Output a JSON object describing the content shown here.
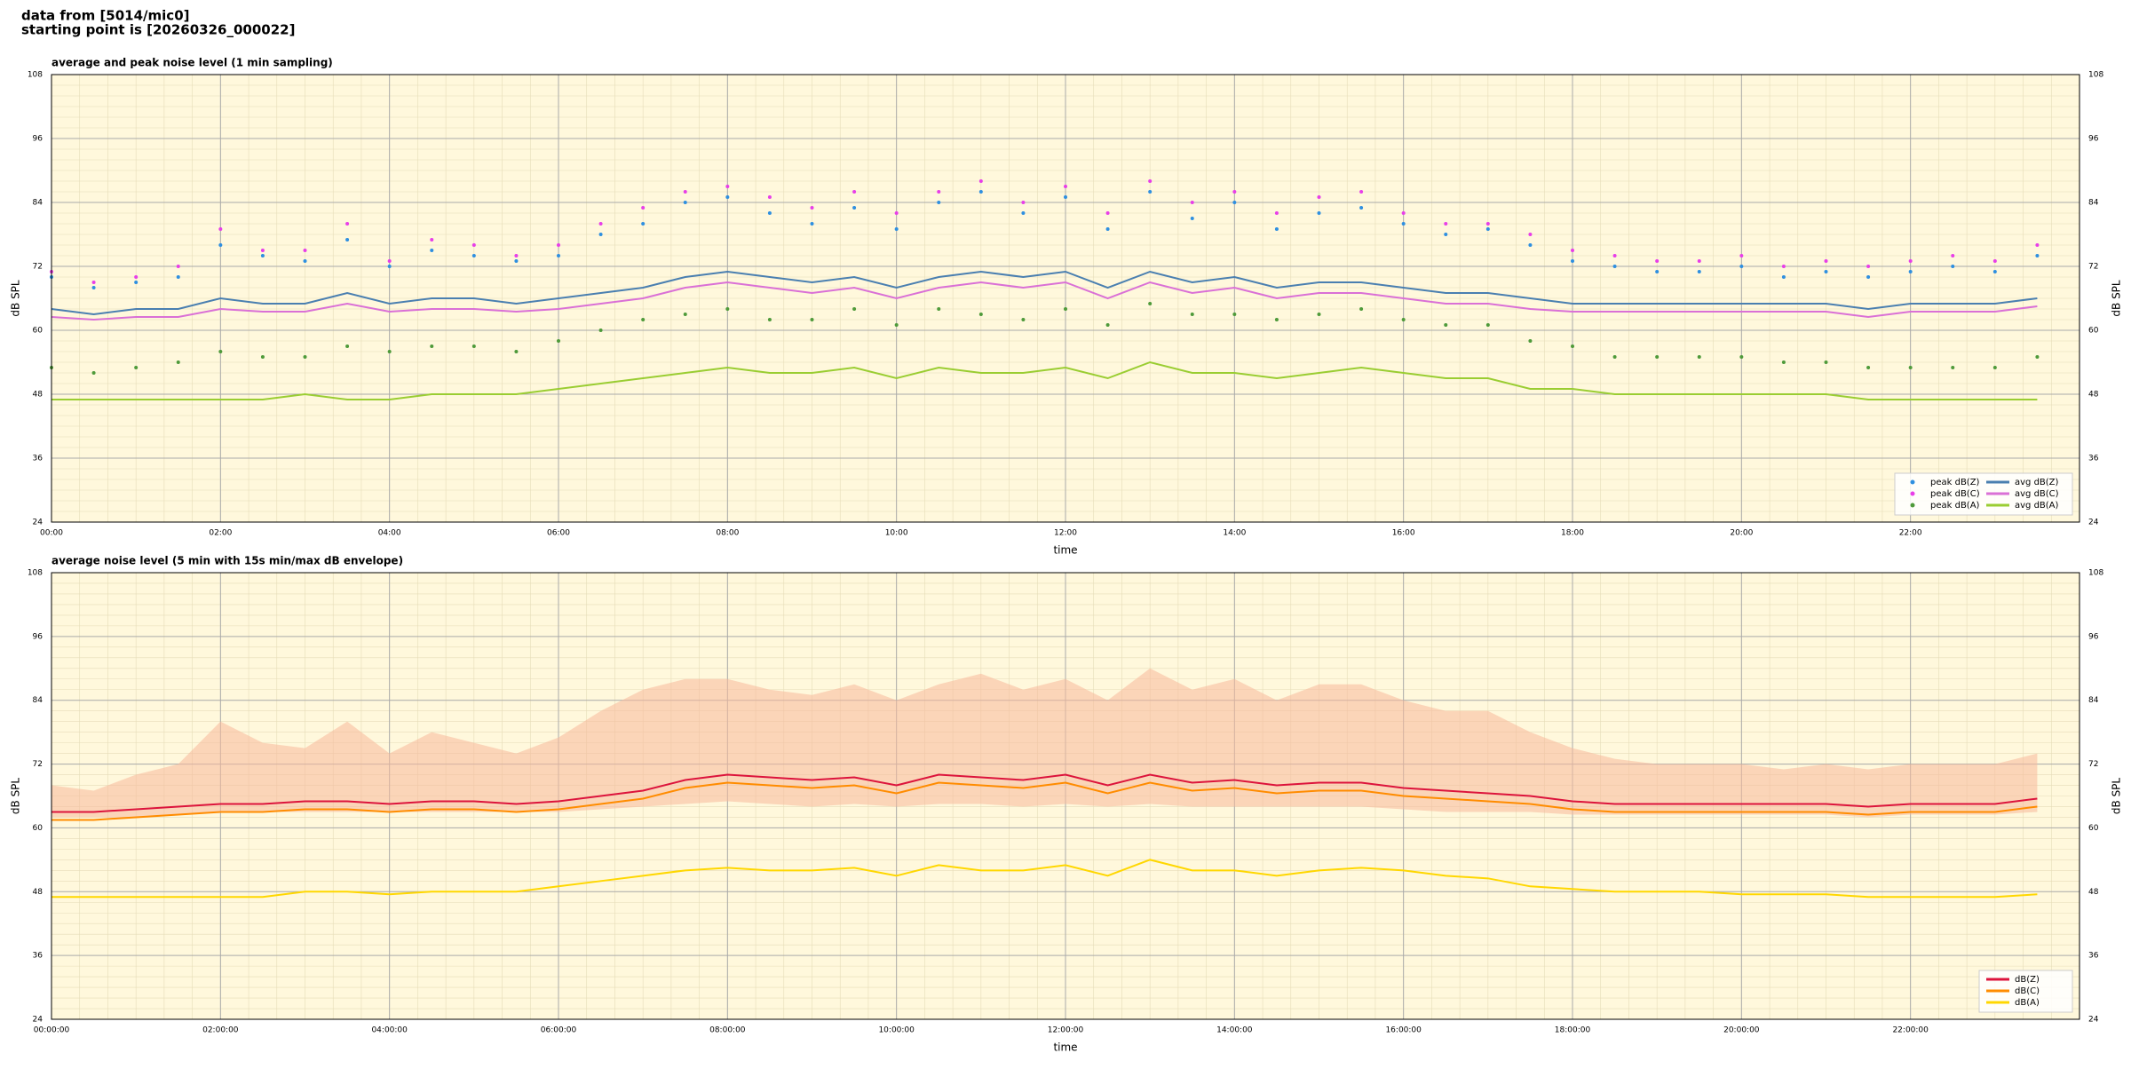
{
  "header": {
    "line1": "data from [5014/mic0]",
    "line2": "starting point is [20260326_000022]"
  },
  "chart_data": [
    {
      "type": "line",
      "title": "average and peak noise level (1 min sampling)",
      "xlabel": "time",
      "ylabel": "dB SPL",
      "x": [
        "00:00",
        "00:30",
        "01:00",
        "01:30",
        "02:00",
        "02:30",
        "03:00",
        "03:30",
        "04:00",
        "04:30",
        "05:00",
        "05:30",
        "06:00",
        "06:30",
        "07:00",
        "07:30",
        "08:00",
        "08:30",
        "09:00",
        "09:30",
        "10:00",
        "10:30",
        "11:00",
        "11:30",
        "12:00",
        "12:30",
        "13:00",
        "13:30",
        "14:00",
        "14:30",
        "15:00",
        "15:30",
        "16:00",
        "16:30",
        "17:00",
        "17:30",
        "18:00",
        "18:30",
        "19:00",
        "19:30",
        "20:00",
        "20:30",
        "21:00",
        "21:30",
        "22:00",
        "22:30",
        "23:00",
        "23:30"
      ],
      "xlim": [
        "00:00",
        "24:00"
      ],
      "xticks": [
        "00:00",
        "02:00",
        "04:00",
        "06:00",
        "08:00",
        "10:00",
        "12:00",
        "14:00",
        "16:00",
        "18:00",
        "20:00",
        "22:00"
      ],
      "ylim": [
        24,
        108
      ],
      "yticks": [
        24,
        36,
        48,
        60,
        72,
        84,
        96,
        108
      ],
      "grid": true,
      "legend": "lower right",
      "series": [
        {
          "name": "peak dB(Z)",
          "color": "#2e8fe0",
          "kind": "scatter",
          "values": [
            70,
            68,
            69,
            70,
            76,
            74,
            73,
            77,
            72,
            75,
            74,
            73,
            74,
            78,
            80,
            84,
            85,
            82,
            80,
            83,
            79,
            84,
            86,
            82,
            85,
            79,
            86,
            81,
            84,
            79,
            82,
            83,
            80,
            78,
            79,
            76,
            73,
            72,
            71,
            71,
            72,
            70,
            71,
            70,
            71,
            72,
            71,
            74
          ]
        },
        {
          "name": "peak dB(C)",
          "color": "#e83ee8",
          "kind": "scatter",
          "values": [
            71,
            69,
            70,
            72,
            79,
            75,
            75,
            80,
            73,
            77,
            76,
            74,
            76,
            80,
            83,
            86,
            87,
            85,
            83,
            86,
            82,
            86,
            88,
            84,
            87,
            82,
            88,
            84,
            86,
            82,
            85,
            86,
            82,
            80,
            80,
            78,
            75,
            74,
            73,
            73,
            74,
            72,
            73,
            72,
            73,
            74,
            73,
            76
          ]
        },
        {
          "name": "peak dB(A)",
          "color": "#4e9a3a",
          "kind": "scatter",
          "values": [
            53,
            52,
            53,
            54,
            56,
            55,
            55,
            57,
            56,
            57,
            57,
            56,
            58,
            60,
            62,
            63,
            64,
            62,
            62,
            64,
            61,
            64,
            63,
            62,
            64,
            61,
            65,
            63,
            63,
            62,
            63,
            64,
            62,
            61,
            61,
            58,
            57,
            55,
            55,
            55,
            55,
            54,
            54,
            53,
            53,
            53,
            53,
            55
          ]
        },
        {
          "name": "avg dB(Z)",
          "color": "#4a7fb0",
          "kind": "line",
          "values": [
            64,
            63,
            64,
            64,
            66,
            65,
            65,
            67,
            65,
            66,
            66,
            65,
            66,
            67,
            68,
            70,
            71,
            70,
            69,
            70,
            68,
            70,
            71,
            70,
            71,
            68,
            71,
            69,
            70,
            68,
            69,
            69,
            68,
            67,
            67,
            66,
            65,
            65,
            65,
            65,
            65,
            65,
            65,
            64,
            65,
            65,
            65,
            66
          ]
        },
        {
          "name": "avg dB(C)",
          "color": "#da70d6",
          "kind": "line",
          "values": [
            62.5,
            62,
            62.5,
            62.5,
            64,
            63.5,
            63.5,
            65,
            63.5,
            64,
            64,
            63.5,
            64,
            65,
            66,
            68,
            69,
            68,
            67,
            68,
            66,
            68,
            69,
            68,
            69,
            66,
            69,
            67,
            68,
            66,
            67,
            67,
            66,
            65,
            65,
            64,
            63.5,
            63.5,
            63.5,
            63.5,
            63.5,
            63.5,
            63.5,
            62.5,
            63.5,
            63.5,
            63.5,
            64.5
          ]
        },
        {
          "name": "avg dB(A)",
          "color": "#9acd32",
          "kind": "line",
          "values": [
            47,
            47,
            47,
            47,
            47,
            47,
            48,
            47,
            47,
            48,
            48,
            48,
            49,
            50,
            51,
            52,
            53,
            52,
            52,
            53,
            51,
            53,
            52,
            52,
            53,
            51,
            54,
            52,
            52,
            51,
            52,
            53,
            52,
            51,
            51,
            49,
            49,
            48,
            48,
            48,
            48,
            48,
            48,
            47,
            47,
            47,
            47,
            47
          ]
        }
      ]
    },
    {
      "type": "line",
      "title": "average noise level (5 min with 15s min/max dB envelope)",
      "xlabel": "time",
      "ylabel": "dB SPL",
      "x": [
        "00:00:00",
        "00:30:00",
        "01:00:00",
        "01:30:00",
        "02:00:00",
        "02:30:00",
        "03:00:00",
        "03:30:00",
        "04:00:00",
        "04:30:00",
        "05:00:00",
        "05:30:00",
        "06:00:00",
        "06:30:00",
        "07:00:00",
        "07:30:00",
        "08:00:00",
        "08:30:00",
        "09:00:00",
        "09:30:00",
        "10:00:00",
        "10:30:00",
        "11:00:00",
        "11:30:00",
        "12:00:00",
        "12:30:00",
        "13:00:00",
        "13:30:00",
        "14:00:00",
        "14:30:00",
        "15:00:00",
        "15:30:00",
        "16:00:00",
        "16:30:00",
        "17:00:00",
        "17:30:00",
        "18:00:00",
        "18:30:00",
        "19:00:00",
        "19:30:00",
        "20:00:00",
        "20:30:00",
        "21:00:00",
        "21:30:00",
        "22:00:00",
        "22:30:00",
        "23:00:00",
        "23:30:00"
      ],
      "xlim": [
        "00:00:00",
        "24:00:00"
      ],
      "xticks": [
        "00:00:00",
        "02:00:00",
        "04:00:00",
        "06:00:00",
        "08:00:00",
        "10:00:00",
        "12:00:00",
        "14:00:00",
        "16:00:00",
        "18:00:00",
        "20:00:00",
        "22:00:00"
      ],
      "ylim": [
        24,
        108
      ],
      "yticks": [
        24,
        36,
        48,
        60,
        72,
        84,
        96,
        108
      ],
      "grid": true,
      "legend": "lower right",
      "envelope_color": "#f8b89a",
      "envelope_max": [
        68,
        67,
        70,
        72,
        80,
        76,
        75,
        80,
        74,
        78,
        76,
        74,
        77,
        82,
        86,
        88,
        88,
        86,
        85,
        87,
        84,
        87,
        89,
        86,
        88,
        84,
        90,
        86,
        88,
        84,
        87,
        87,
        84,
        82,
        82,
        78,
        75,
        73,
        72,
        72,
        72,
        71,
        72,
        71,
        72,
        72,
        72,
        74
      ],
      "envelope_min": [
        62,
        62,
        62,
        62.5,
        63,
        63,
        63,
        63,
        63,
        63,
        63,
        63,
        63,
        63.5,
        64,
        64.5,
        65,
        64.5,
        64,
        64.5,
        64,
        64.5,
        64.5,
        64,
        64.5,
        64,
        64.5,
        64,
        64,
        64,
        64,
        64,
        63.5,
        63,
        63,
        63,
        62.5,
        62.5,
        62.5,
        62.5,
        62.5,
        62.5,
        62.5,
        62,
        62.5,
        62.5,
        62.5,
        63
      ],
      "series": [
        {
          "name": "dB(Z)",
          "color": "#dc143c",
          "kind": "line",
          "values": [
            63,
            63,
            63.5,
            64,
            64.5,
            64.5,
            65,
            65,
            64.5,
            65,
            65,
            64.5,
            65,
            66,
            67,
            69,
            70,
            69.5,
            69,
            69.5,
            68,
            70,
            69.5,
            69,
            70,
            68,
            70,
            68.5,
            69,
            68,
            68.5,
            68.5,
            67.5,
            67,
            66.5,
            66,
            65,
            64.5,
            64.5,
            64.5,
            64.5,
            64.5,
            64.5,
            64,
            64.5,
            64.5,
            64.5,
            65.5
          ]
        },
        {
          "name": "dB(C)",
          "color": "#ff8c00",
          "kind": "line",
          "values": [
            61.5,
            61.5,
            62,
            62.5,
            63,
            63,
            63.5,
            63.5,
            63,
            63.5,
            63.5,
            63,
            63.5,
            64.5,
            65.5,
            67.5,
            68.5,
            68,
            67.5,
            68,
            66.5,
            68.5,
            68,
            67.5,
            68.5,
            66.5,
            68.5,
            67,
            67.5,
            66.5,
            67,
            67,
            66,
            65.5,
            65,
            64.5,
            63.5,
            63,
            63,
            63,
            63,
            63,
            63,
            62.5,
            63,
            63,
            63,
            64
          ]
        },
        {
          "name": "dB(A)",
          "color": "#ffd700",
          "kind": "line",
          "values": [
            47,
            47,
            47,
            47,
            47,
            47,
            48,
            48,
            47.5,
            48,
            48,
            48,
            49,
            50,
            51,
            52,
            52.5,
            52,
            52,
            52.5,
            51,
            53,
            52,
            52,
            53,
            51,
            54,
            52,
            52,
            51,
            52,
            52.5,
            52,
            51,
            50.5,
            49,
            48.5,
            48,
            48,
            48,
            47.5,
            47.5,
            47.5,
            47,
            47,
            47,
            47,
            47.5
          ]
        }
      ]
    }
  ]
}
